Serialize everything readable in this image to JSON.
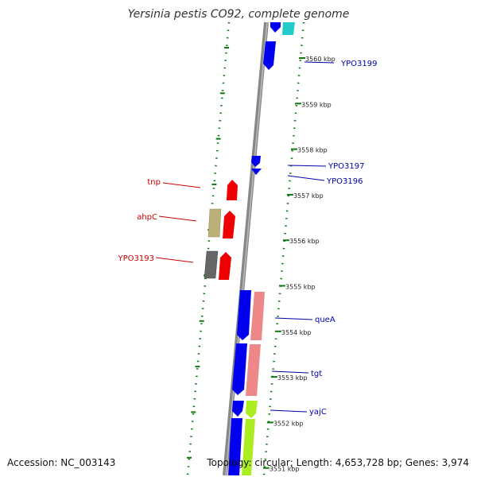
{
  "title": "Yersinia pestis CO92, complete genome",
  "footer": {
    "accession": "Accession: NC_003143",
    "summary": "Topology: circular; Length: 4,653,728 bp; Genes: 3,974"
  },
  "colors": {
    "forward_label": "#cc0000",
    "reverse_label": "#0000aa",
    "gene_blue": "#0000ee",
    "gene_red": "#ee0000",
    "gene_salmon": "#ee8888",
    "gene_cyan": "#22cccc",
    "gene_lime": "#aaee22",
    "gene_khaki": "#bbb077",
    "gene_gray": "#666666",
    "tick_green": "#117711"
  },
  "ruler": {
    "unit": "kbp",
    "ticks": [
      "3560 kbp",
      "3559 kbp",
      "3558 kbp",
      "3557 kbp",
      "3556 kbp",
      "3555 kbp",
      "3554 kbp",
      "3553 kbp",
      "3552 kbp",
      "3551 kbp"
    ]
  },
  "labels": {
    "left": [
      "tnp",
      "ahpC",
      "YPO3193"
    ],
    "right": [
      "YPO3199",
      "YPO3197",
      "YPO3196",
      "queA",
      "tgt",
      "yajC"
    ]
  }
}
